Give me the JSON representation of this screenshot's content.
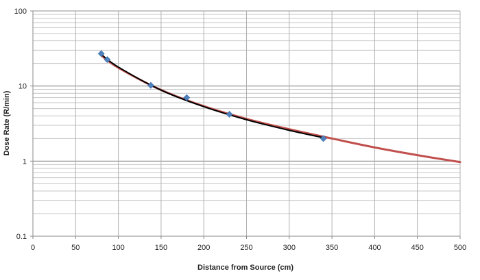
{
  "chart_data": {
    "type": "scatter",
    "title": "",
    "xlabel": "Distance from Source (cm)",
    "ylabel": "Dose Rate (R/min)",
    "xlim": [
      0,
      500
    ],
    "ylim": [
      0.1,
      100
    ],
    "y_scale": "log",
    "grid": true,
    "legend": "none",
    "x_ticks": [
      "0",
      "50",
      "100",
      "150",
      "200",
      "250",
      "300",
      "350",
      "400",
      "450",
      "500"
    ],
    "y_ticks": [
      "0.1",
      "1",
      "10",
      "100"
    ],
    "series": [
      {
        "kind": "scatter",
        "marker": "diamond",
        "color": "#4F81BD",
        "x": [
          80,
          87,
          138,
          180,
          230,
          340
        ],
        "y": [
          27,
          22.5,
          10.2,
          7.0,
          4.2,
          2.0
        ]
      },
      {
        "kind": "line",
        "color": "#000000",
        "x": [
          80,
          100,
          150,
          200,
          250,
          300,
          340
        ],
        "y": [
          26.4,
          17.9,
          8.81,
          5.31,
          3.56,
          2.57,
          2.05
        ]
      },
      {
        "kind": "line",
        "color": "#C0504D",
        "x": [
          80,
          100,
          150,
          200,
          250,
          300,
          350,
          400,
          450,
          500
        ],
        "y": [
          25.6,
          17.5,
          8.86,
          5.39,
          3.65,
          2.66,
          2.0,
          1.52,
          1.2,
          0.97
        ]
      }
    ]
  }
}
